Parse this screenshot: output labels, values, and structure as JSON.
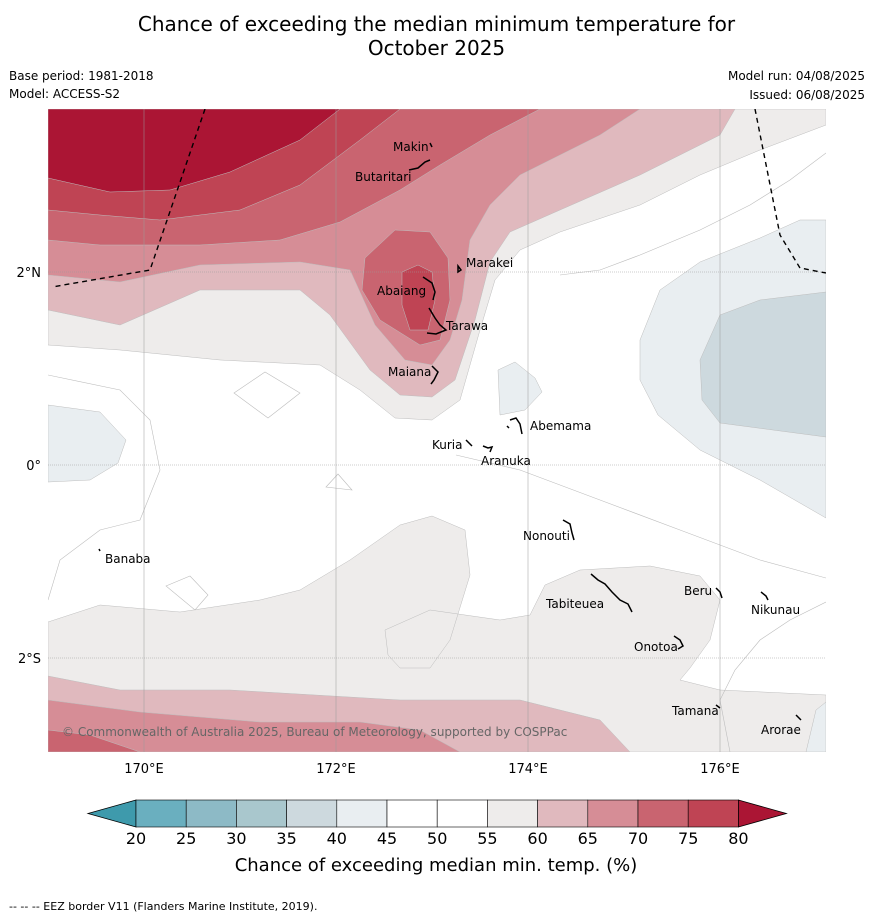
{
  "title_line1": "Chance of exceeding the median minimum temperature for",
  "title_line2": "October 2025",
  "base_period": "Base period: 1981-2018",
  "model": "Model: ACCESS-S2",
  "model_run": "Model run: 04/08/2025",
  "issued": "Issued: 06/08/2025",
  "copyright": "© Commonwealth of Australia 2025, Bureau of Meteorology, supported by COSPPac",
  "lat_labels": [
    "2°N",
    "0°",
    "2°S"
  ],
  "lon_labels": [
    "170°E",
    "172°E",
    "174°E",
    "176°E"
  ],
  "places": {
    "makin": "Makin",
    "butaritari": "Butaritari",
    "marakei": "Marakei",
    "abaiang": "Abaiang",
    "tarawa": "Tarawa",
    "maiana": "Maiana",
    "abemama": "Abemama",
    "kuria": "Kuria",
    "aranuka": "Aranuka",
    "nonouti": "Nonouti",
    "banaba": "Banaba",
    "beru": "Beru",
    "tabiteuea": "Tabiteuea",
    "nikunau": "Nikunau",
    "onotoa": "Onotoa",
    "tamana": "Tamana",
    "arorae": "Arorae"
  },
  "colorbar": {
    "ticks": [
      "20",
      "25",
      "30",
      "35",
      "40",
      "45",
      "50",
      "55",
      "60",
      "65",
      "70",
      "75",
      "80"
    ],
    "colors": [
      "#3e9aac",
      "#6aafbf",
      "#8dbac6",
      "#a9c7cd",
      "#cdd9de",
      "#e9eef1",
      "#ffffff",
      "#ffffff",
      "#eeeceb",
      "#e0b9be",
      "#d68d96",
      "#c96470",
      "#bf4454",
      "#ab1534"
    ],
    "label": "Chance of exceeding median min. temp. (%)"
  },
  "footnote": "--  --  -- EEZ border V11 (Flanders Marine Institute, 2019)."
}
